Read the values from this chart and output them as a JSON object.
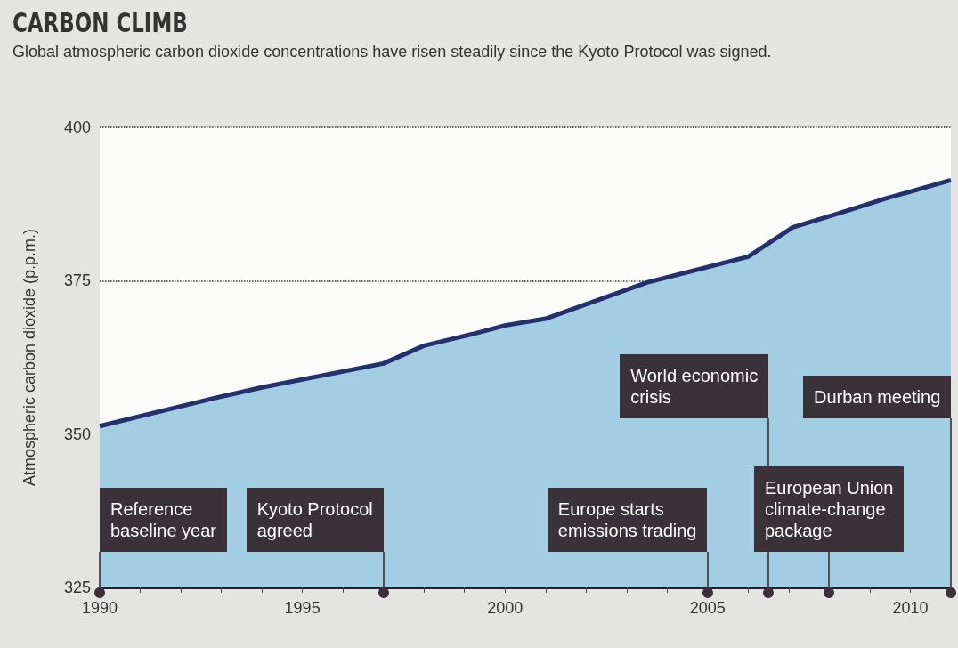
{
  "chart_data": {
    "type": "area",
    "title": "CARBON CLIMB",
    "subtitle": "Global atmospheric carbon dioxide concentrations have risen steadily since the Kyoto Protocol was signed.",
    "ylabel": "Atmospheric carbon dioxide (p.p.m.)",
    "x": [
      1990,
      1992.8,
      1994,
      1997,
      1998,
      1999.2,
      2000,
      2001,
      2003.5,
      2006,
      2007.1,
      2008.2,
      2009.4,
      2011
    ],
    "values": [
      351.3,
      355.8,
      357.6,
      361.5,
      364.4,
      366.3,
      367.7,
      368.8,
      374.7,
      378.9,
      383.7,
      385.9,
      388.4,
      391.4
    ],
    "color": "#a3cde2",
    "marker": "none",
    "grid": "y",
    "xlim": [
      1990,
      2011
    ],
    "xticks": [
      1990,
      {
        "value": 1991,
        "label": null
      },
      {
        "value": 1992,
        "label": null
      },
      {
        "value": 1993,
        "label": null
      },
      {
        "value": 1994,
        "label": null
      },
      1995,
      {
        "value": 1996,
        "label": null
      },
      {
        "value": 1997,
        "label": null
      },
      {
        "value": 1998,
        "label": null
      },
      {
        "value": 1999,
        "label": null
      },
      2000,
      {
        "value": 2001,
        "label": null
      },
      {
        "value": 2002,
        "label": null
      },
      {
        "value": 2003,
        "label": null
      },
      {
        "value": 2004,
        "label": null
      },
      2005,
      {
        "value": 2006,
        "label": null
      },
      {
        "value": 2007,
        "label": null
      },
      {
        "value": 2008,
        "label": null
      },
      {
        "value": 2009,
        "label": null
      },
      2010,
      {
        "value": 2011,
        "label": null
      }
    ],
    "ylim": [
      325,
      400
    ],
    "yticks": [
      325,
      350,
      375,
      400
    ],
    "annotations": [
      {
        "text": "Reference baseline year",
        "x": 1990,
        "y": 325
      },
      {
        "text": "Kyoto Protocol agreed",
        "x": 1997,
        "y": 325
      },
      {
        "text": "Europe starts emissions trading",
        "x": 2005,
        "y": 325
      },
      {
        "text": "World economic crisis",
        "x": 2006.5,
        "y": 325
      },
      {
        "text": "European Union climate-change package",
        "x": 2008,
        "y": 325
      },
      {
        "text": "Durban meeting",
        "x": 2011,
        "y": 325
      }
    ]
  }
}
